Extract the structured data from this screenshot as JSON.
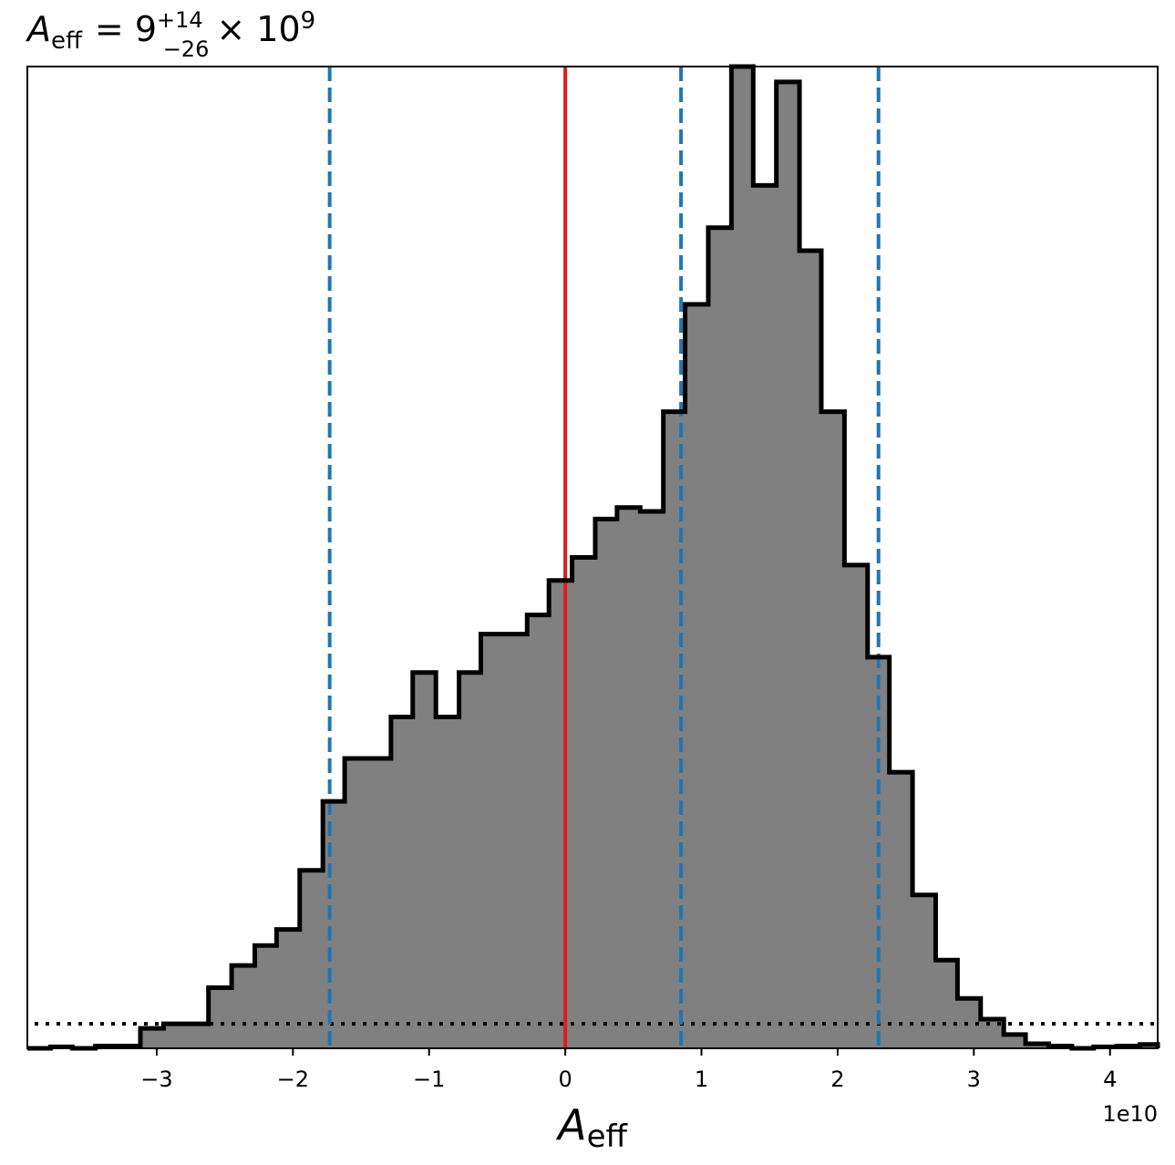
{
  "chart_data": {
    "type": "histogram",
    "title": {
      "symbol": "A",
      "symbol_sub": "eff",
      "value": "= 9",
      "upper": "+14",
      "lower": "−26",
      "scale": "× 10",
      "scale_exp": "9"
    },
    "xlabel": {
      "symbol": "A",
      "sub": "eff"
    },
    "ylabel": "",
    "x_offset_text": "1e10",
    "xlim": [
      -39500000000.0,
      43500000000.0
    ],
    "ylim": [
      0,
      1280
    ],
    "grid": false,
    "xticks": [
      -3,
      -2,
      -1,
      0,
      1,
      2,
      3,
      4
    ],
    "xtick_labels": [
      "−3",
      "−2",
      "−1",
      "0",
      "1",
      "2",
      "3",
      "4"
    ],
    "bin_edges": [
      -39500000000.0,
      -37800000000.0,
      -36200000000.0,
      -34500000000.0,
      -32800000000.0,
      -31200000000.0,
      -29500000000.0,
      -27800000000.0,
      -26200000000.0,
      -24500000000.0,
      -22800000000.0,
      -21200000000.0,
      -19500000000.0,
      -17800000000.0,
      -16200000000.0,
      -14500000000.0,
      -12800000000.0,
      -11200000000.0,
      -9500000000.0,
      -7800000000.0,
      -6200000000.0,
      -4500000000.0,
      -2800000000.0,
      -1200000000.0,
      500000000.0,
      2200000000.0,
      3800000000.0,
      5500000000.0,
      7200000000.0,
      8800000000.0,
      10500000000.0,
      12200000000.0,
      13800000000.0,
      15500000000.0,
      17200000000.0,
      18800000000.0,
      20500000000.0,
      22200000000.0,
      23800000000.0,
      25500000000.0,
      27200000000.0,
      28800000000.0,
      30500000000.0,
      32200000000.0,
      33800000000.0,
      35500000000.0,
      37200000000.0,
      38800000000.0,
      40500000000.0,
      42200000000.0,
      43500000000.0
    ],
    "counts": [
      0,
      2,
      0,
      3,
      3,
      26,
      32,
      32,
      79,
      108,
      134,
      155,
      232,
      322,
      378,
      378,
      432,
      490,
      432,
      490,
      540,
      540,
      565,
      610,
      640,
      690,
      705,
      700,
      830,
      970,
      1070,
      1280,
      1125,
      1260,
      1040,
      830,
      630,
      510,
      360,
      200,
      115,
      65,
      38,
      18,
      6,
      3,
      0,
      2,
      3,
      5
    ],
    "reference_line": {
      "x": 0,
      "color": "#e41a1c"
    },
    "quantile_lines": {
      "x": [
        -17300000000.0,
        8500000000.0,
        23000000000.0
      ],
      "color": "#1f77b4"
    },
    "prior_line": {
      "level": 32,
      "color": "#000000"
    },
    "colors": {
      "fill": "#808080",
      "edge": "#000000"
    }
  }
}
